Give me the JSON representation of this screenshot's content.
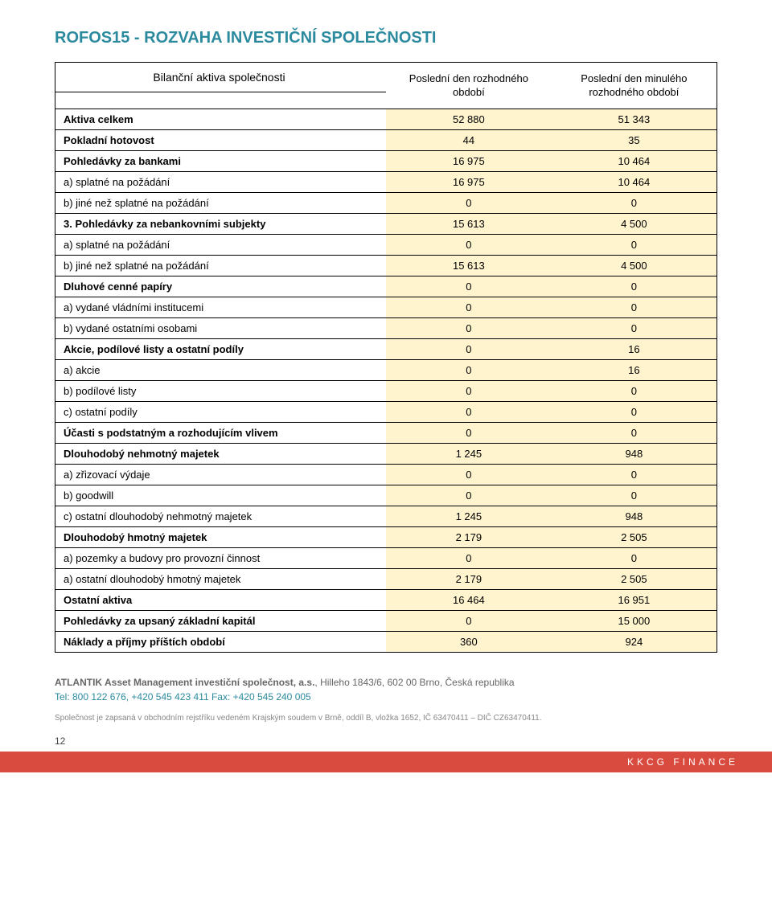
{
  "colors": {
    "title": "#2b8a9e",
    "num_cell_bg": "#fff4ce",
    "footer_accent": "#2b8a9e",
    "brand_bg": "#d94a3f",
    "brand_text": "#ffffff"
  },
  "title": "ROFOS15 - ROZVAHA INVESTIČNÍ SPOLEČNOSTI",
  "table": {
    "header_label": "Bilanční aktiva společnosti",
    "col1": "Poslední den rozhodného období",
    "col2": "Poslední den minulého rozhodného období",
    "rows": [
      {
        "label": "Aktiva celkem",
        "v1": "52 880",
        "v2": "51 343",
        "bold": true
      },
      {
        "label": "Pokladní hotovost",
        "v1": "44",
        "v2": "35",
        "bold": true
      },
      {
        "label": "Pohledávky za bankami",
        "v1": "16 975",
        "v2": "10 464",
        "bold": true
      },
      {
        "label": "a) splatné na požádání",
        "v1": "16 975",
        "v2": "10 464",
        "bold": false
      },
      {
        "label": "b) jiné než splatné na požádání",
        "v1": "0",
        "v2": "0",
        "bold": false
      },
      {
        "label": "3. Pohledávky za nebankovními subjekty",
        "v1": "15 613",
        "v2": "4 500",
        "bold": true
      },
      {
        "label": "a) splatné na požádání",
        "v1": "0",
        "v2": "0",
        "bold": false
      },
      {
        "label": "b) jiné než splatné na požádání",
        "v1": "15 613",
        "v2": "4 500",
        "bold": false
      },
      {
        "label": "Dluhové cenné papíry",
        "v1": "0",
        "v2": "0",
        "bold": true
      },
      {
        "label": "a) vydané vládními institucemi",
        "v1": "0",
        "v2": "0",
        "bold": false
      },
      {
        "label": "b) vydané ostatními osobami",
        "v1": "0",
        "v2": "0",
        "bold": false
      },
      {
        "label": "Akcie, podílové listy a ostatní podíly",
        "v1": "0",
        "v2": "16",
        "bold": true
      },
      {
        "label": "a) akcie",
        "v1": "0",
        "v2": "16",
        "bold": false
      },
      {
        "label": "b) podílové listy",
        "v1": "0",
        "v2": "0",
        "bold": false
      },
      {
        "label": "c) ostatní podíly",
        "v1": "0",
        "v2": "0",
        "bold": false
      },
      {
        "label": "Účasti s podstatným a rozhodujícím vlivem",
        "v1": "0",
        "v2": "0",
        "bold": true
      },
      {
        "label": "Dlouhodobý nehmotný majetek",
        "v1": "1 245",
        "v2": "948",
        "bold": true
      },
      {
        "label": "a) zřizovací výdaje",
        "v1": "0",
        "v2": "0",
        "bold": false
      },
      {
        "label": "b) goodwill",
        "v1": "0",
        "v2": "0",
        "bold": false
      },
      {
        "label": "c) ostatní dlouhodobý nehmotný majetek",
        "v1": "1 245",
        "v2": "948",
        "bold": false
      },
      {
        "label": "Dlouhodobý hmotný majetek",
        "v1": "2 179",
        "v2": "2 505",
        "bold": true
      },
      {
        "label": "a) pozemky a budovy pro provozní činnost",
        "v1": "0",
        "v2": "0",
        "bold": false
      },
      {
        "label": "a) ostatní dlouhodobý hmotný majetek",
        "v1": "2 179",
        "v2": "2 505",
        "bold": false
      },
      {
        "label": "Ostatní aktiva",
        "v1": "16 464",
        "v2": "16 951",
        "bold": true
      },
      {
        "label": "Pohledávky za upsaný základní kapitál",
        "v1": "0",
        "v2": "15 000",
        "bold": true
      },
      {
        "label": "Náklady a příjmy příštích období",
        "v1": "360",
        "v2": "924",
        "bold": true
      }
    ]
  },
  "footer": {
    "line1_bold": "ATLANTIK Asset Management investiční společnost, a.s.",
    "line1_rest": ", Hilleho 1843/6, 602 00 Brno, Česká republika",
    "line2": "Tel: 800 122 676, +420 545 423 411  Fax: +420 545 240 005",
    "line3": "Společnost je zapsaná v obchodním rejstříku vedeném Krajským soudem v Brně, oddíl B, vložka 1652, IČ 63470411 – DIČ CZ63470411."
  },
  "page_number": "12",
  "brand": "KKCG FINANCE"
}
